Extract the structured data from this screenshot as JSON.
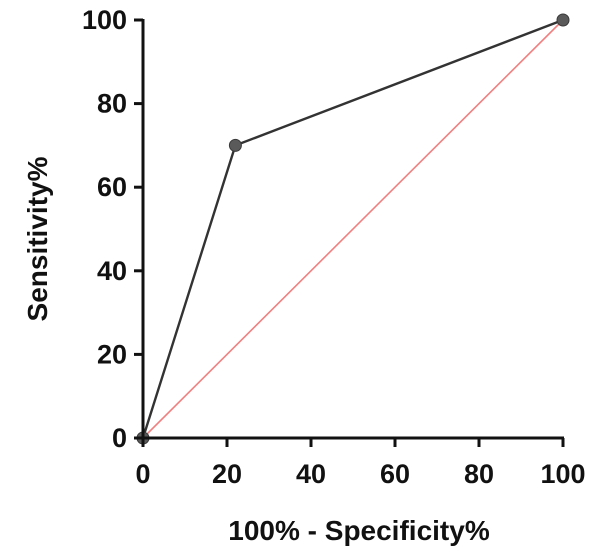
{
  "chart_data": {
    "type": "line",
    "title": "",
    "xlabel": "100% - Specificity%",
    "ylabel": "Sensitivity%",
    "xlim": [
      0,
      100
    ],
    "ylim": [
      0,
      100
    ],
    "xticks": [
      "0",
      "20",
      "40",
      "60",
      "80",
      "100"
    ],
    "yticks": [
      "0",
      "20",
      "40",
      "60",
      "80",
      "100"
    ],
    "grid": false,
    "legend": "none",
    "series": [
      {
        "x": [
          0,
          22,
          100
        ],
        "y": [
          0,
          70,
          100
        ],
        "color": "#333333",
        "markers": true
      },
      {
        "x": [
          0,
          100
        ],
        "y": [
          0,
          100
        ],
        "color": "#f08080",
        "markers": false
      }
    ]
  }
}
